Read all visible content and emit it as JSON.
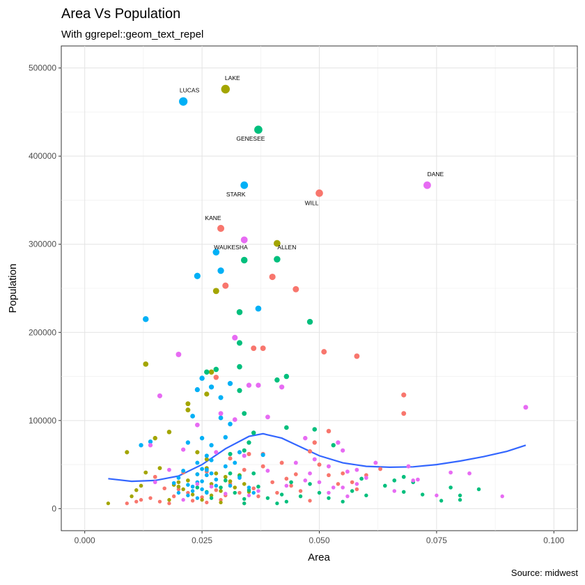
{
  "chart_data": {
    "type": "scatter",
    "title": "Area Vs Population",
    "subtitle": "With ggrepel::geom_text_repel",
    "caption": "Source: midwest",
    "xlabel": "Area",
    "ylabel": "Population",
    "xlim": [
      -0.005,
      0.105
    ],
    "ylim": [
      -25000,
      525000
    ],
    "x_ticks": [
      0,
      0.025,
      0.05,
      0.075,
      0.1
    ],
    "x_tick_labels": [
      "0.000",
      "0.025",
      "0.050",
      "0.075",
      "0.100"
    ],
    "y_ticks": [
      0,
      100000,
      200000,
      300000,
      400000,
      500000
    ],
    "y_tick_labels": [
      "0",
      "100000",
      "200000",
      "300000",
      "400000",
      "500000"
    ],
    "grid": true,
    "legend": "none",
    "colors": {
      "IL": "#F8766D",
      "IN": "#A3A500",
      "MI": "#00BF7D",
      "OH": "#00B0F6",
      "WI": "#E76BF3",
      "smooth": "#3366FF"
    },
    "series": [
      {
        "color_key": "IL",
        "points": [
          [
            0.029,
            318000
          ],
          [
            0.05,
            358000
          ],
          [
            0.03,
            253000
          ],
          [
            0.04,
            263000
          ],
          [
            0.045,
            249000
          ],
          [
            0.036,
            182000
          ],
          [
            0.038,
            182000
          ],
          [
            0.051,
            178000
          ],
          [
            0.058,
            173000
          ],
          [
            0.028,
            149000
          ],
          [
            0.068,
            129000
          ],
          [
            0.068,
            108000
          ],
          [
            0.049,
            75000
          ],
          [
            0.052,
            88000
          ],
          [
            0.048,
            65000
          ],
          [
            0.042,
            52000
          ],
          [
            0.05,
            50000
          ],
          [
            0.038,
            62000
          ],
          [
            0.031,
            57000
          ],
          [
            0.035,
            62000
          ],
          [
            0.009,
            6000
          ],
          [
            0.011,
            8000
          ],
          [
            0.012,
            10000
          ],
          [
            0.014,
            12000
          ],
          [
            0.016,
            8000
          ],
          [
            0.018,
            6000
          ],
          [
            0.019,
            14000
          ],
          [
            0.02,
            22000
          ],
          [
            0.022,
            18000
          ],
          [
            0.023,
            9000
          ],
          [
            0.025,
            13000
          ],
          [
            0.026,
            7000
          ],
          [
            0.028,
            21000
          ],
          [
            0.029,
            10000
          ],
          [
            0.03,
            15000
          ],
          [
            0.031,
            28000
          ],
          [
            0.033,
            18000
          ],
          [
            0.034,
            6000
          ],
          [
            0.036,
            23000
          ],
          [
            0.037,
            14000
          ],
          [
            0.04,
            30000
          ],
          [
            0.041,
            18000
          ],
          [
            0.043,
            34000
          ],
          [
            0.044,
            26000
          ],
          [
            0.046,
            20000
          ],
          [
            0.048,
            9000
          ],
          [
            0.052,
            38000
          ],
          [
            0.055,
            40000
          ],
          [
            0.057,
            30000
          ],
          [
            0.06,
            38000
          ],
          [
            0.063,
            45000
          ],
          [
            0.015,
            36000
          ],
          [
            0.017,
            23000
          ],
          [
            0.021,
            41000
          ],
          [
            0.026,
            42000
          ],
          [
            0.034,
            44000
          ],
          [
            0.038,
            48000
          ],
          [
            0.045,
            39000
          ],
          [
            0.054,
            28000
          ],
          [
            0.058,
            22000
          ]
        ]
      },
      {
        "color_key": "IN",
        "points": [
          [
            0.03,
            476000
          ],
          [
            0.041,
            301000
          ],
          [
            0.028,
            247000
          ],
          [
            0.013,
            164000
          ],
          [
            0.027,
            155000
          ],
          [
            0.026,
            130000
          ],
          [
            0.022,
            119000
          ],
          [
            0.022,
            112000
          ],
          [
            0.018,
            87000
          ],
          [
            0.015,
            80000
          ],
          [
            0.009,
            64000
          ],
          [
            0.016,
            46000
          ],
          [
            0.013,
            41000
          ],
          [
            0.012,
            26000
          ],
          [
            0.005,
            6000
          ],
          [
            0.01,
            14000
          ],
          [
            0.011,
            21000
          ],
          [
            0.019,
            27000
          ],
          [
            0.02,
            30000
          ],
          [
            0.021,
            22000
          ],
          [
            0.022,
            32000
          ],
          [
            0.023,
            16000
          ],
          [
            0.024,
            39000
          ],
          [
            0.025,
            10000
          ],
          [
            0.026,
            46000
          ],
          [
            0.027,
            28000
          ],
          [
            0.028,
            40000
          ],
          [
            0.029,
            20000
          ],
          [
            0.03,
            36000
          ],
          [
            0.031,
            31000
          ],
          [
            0.032,
            24000
          ],
          [
            0.033,
            38000
          ],
          [
            0.034,
            28000
          ],
          [
            0.035,
            19000
          ],
          [
            0.02,
            25000
          ],
          [
            0.018,
            10000
          ],
          [
            0.024,
            64000
          ],
          [
            0.026,
            56000
          ],
          [
            0.027,
            15000
          ],
          [
            0.029,
            7000
          ]
        ]
      },
      {
        "color_key": "MI",
        "points": [
          [
            0.037,
            430000
          ],
          [
            0.041,
            283000
          ],
          [
            0.034,
            282000
          ],
          [
            0.033,
            223000
          ],
          [
            0.048,
            212000
          ],
          [
            0.033,
            188000
          ],
          [
            0.033,
            161000
          ],
          [
            0.028,
            158000
          ],
          [
            0.026,
            155000
          ],
          [
            0.043,
            150000
          ],
          [
            0.033,
            134000
          ],
          [
            0.041,
            146000
          ],
          [
            0.034,
            108000
          ],
          [
            0.049,
            90000
          ],
          [
            0.043,
            92000
          ],
          [
            0.036,
            86000
          ],
          [
            0.035,
            75000
          ],
          [
            0.034,
            66000
          ],
          [
            0.031,
            62000
          ],
          [
            0.053,
            72000
          ],
          [
            0.059,
            34000
          ],
          [
            0.064,
            26000
          ],
          [
            0.068,
            19000
          ],
          [
            0.072,
            16000
          ],
          [
            0.076,
            9000
          ],
          [
            0.08,
            10000
          ],
          [
            0.048,
            28000
          ],
          [
            0.046,
            14000
          ],
          [
            0.044,
            30000
          ],
          [
            0.042,
            16000
          ],
          [
            0.041,
            6000
          ],
          [
            0.039,
            12000
          ],
          [
            0.037,
            25000
          ],
          [
            0.035,
            21000
          ],
          [
            0.034,
            11000
          ],
          [
            0.033,
            37000
          ],
          [
            0.036,
            40000
          ],
          [
            0.031,
            40000
          ],
          [
            0.03,
            32000
          ],
          [
            0.029,
            24000
          ],
          [
            0.032,
            18000
          ],
          [
            0.026,
            19000
          ],
          [
            0.024,
            24000
          ],
          [
            0.027,
            12000
          ],
          [
            0.05,
            18000
          ],
          [
            0.052,
            12000
          ],
          [
            0.055,
            8000
          ],
          [
            0.057,
            20000
          ],
          [
            0.06,
            15000
          ],
          [
            0.066,
            32000
          ],
          [
            0.068,
            36000
          ],
          [
            0.07,
            30000
          ],
          [
            0.078,
            24000
          ],
          [
            0.08,
            15000
          ],
          [
            0.084,
            22000
          ],
          [
            0.034,
            6000
          ],
          [
            0.043,
            8000
          ]
        ]
      },
      {
        "color_key": "OH",
        "points": [
          [
            0.021,
            462000
          ],
          [
            0.034,
            367000
          ],
          [
            0.028,
            291000
          ],
          [
            0.029,
            270000
          ],
          [
            0.024,
            264000
          ],
          [
            0.037,
            227000
          ],
          [
            0.013,
            215000
          ],
          [
            0.029,
            126000
          ],
          [
            0.027,
            138000
          ],
          [
            0.031,
            142000
          ],
          [
            0.025,
            148000
          ],
          [
            0.024,
            135000
          ],
          [
            0.023,
            105000
          ],
          [
            0.029,
            103000
          ],
          [
            0.031,
            96000
          ],
          [
            0.014,
            76000
          ],
          [
            0.012,
            72000
          ],
          [
            0.025,
            80000
          ],
          [
            0.022,
            75000
          ],
          [
            0.027,
            72000
          ],
          [
            0.03,
            81000
          ],
          [
            0.033,
            64000
          ],
          [
            0.024,
            52000
          ],
          [
            0.025,
            45000
          ],
          [
            0.026,
            38000
          ],
          [
            0.027,
            40000
          ],
          [
            0.028,
            33000
          ],
          [
            0.024,
            30000
          ],
          [
            0.023,
            25000
          ],
          [
            0.025,
            22000
          ],
          [
            0.026,
            18000
          ],
          [
            0.02,
            35000
          ],
          [
            0.019,
            29000
          ],
          [
            0.021,
            43000
          ],
          [
            0.022,
            15000
          ],
          [
            0.023,
            20000
          ],
          [
            0.03,
            48000
          ],
          [
            0.031,
            26000
          ],
          [
            0.032,
            52000
          ],
          [
            0.027,
            55000
          ],
          [
            0.026,
            60000
          ],
          [
            0.02,
            18000
          ],
          [
            0.024,
            12000
          ],
          [
            0.028,
            26000
          ],
          [
            0.038,
            61000
          ],
          [
            0.033,
            35000
          ],
          [
            0.035,
            24000
          ],
          [
            0.036,
            18000
          ],
          [
            0.022,
            27000
          ],
          [
            0.025,
            31000
          ],
          [
            0.026,
            44000
          ],
          [
            0.024,
            39000
          ]
        ]
      },
      {
        "color_key": "WI",
        "points": [
          [
            0.073,
            367000
          ],
          [
            0.034,
            305000
          ],
          [
            0.032,
            194000
          ],
          [
            0.02,
            175000
          ],
          [
            0.035,
            140000
          ],
          [
            0.037,
            140000
          ],
          [
            0.042,
            138000
          ],
          [
            0.016,
            128000
          ],
          [
            0.094,
            115000
          ],
          [
            0.039,
            104000
          ],
          [
            0.032,
            101000
          ],
          [
            0.029,
            108000
          ],
          [
            0.024,
            95000
          ],
          [
            0.014,
            72000
          ],
          [
            0.021,
            67000
          ],
          [
            0.028,
            64000
          ],
          [
            0.034,
            60000
          ],
          [
            0.047,
            80000
          ],
          [
            0.054,
            75000
          ],
          [
            0.055,
            66000
          ],
          [
            0.062,
            52000
          ],
          [
            0.069,
            48000
          ],
          [
            0.078,
            41000
          ],
          [
            0.082,
            40000
          ],
          [
            0.07,
            32000
          ],
          [
            0.071,
            33000
          ],
          [
            0.075,
            15000
          ],
          [
            0.089,
            14000
          ],
          [
            0.066,
            20000
          ],
          [
            0.06,
            35000
          ],
          [
            0.056,
            42000
          ],
          [
            0.052,
            48000
          ],
          [
            0.049,
            56000
          ],
          [
            0.045,
            52000
          ],
          [
            0.048,
            40000
          ],
          [
            0.05,
            30000
          ],
          [
            0.053,
            24000
          ],
          [
            0.056,
            14000
          ],
          [
            0.058,
            28000
          ],
          [
            0.043,
            26000
          ],
          [
            0.039,
            43000
          ],
          [
            0.037,
            20000
          ],
          [
            0.035,
            15000
          ],
          [
            0.03,
            17000
          ],
          [
            0.027,
            25000
          ],
          [
            0.024,
            28000
          ],
          [
            0.021,
            10000
          ],
          [
            0.018,
            44000
          ],
          [
            0.015,
            30000
          ],
          [
            0.052,
            18000
          ],
          [
            0.047,
            32000
          ],
          [
            0.058,
            44000
          ],
          [
            0.055,
            24000
          ]
        ]
      }
    ],
    "labeled_points": [
      {
        "text": "LAKE",
        "x": 0.03,
        "y": 476000
      },
      {
        "text": "LUCAS",
        "x": 0.021,
        "y": 462000
      },
      {
        "text": "GENESEE",
        "x": 0.037,
        "y": 430000
      },
      {
        "text": "DANE",
        "x": 0.073,
        "y": 367000
      },
      {
        "text": "STARK",
        "x": 0.034,
        "y": 367000
      },
      {
        "text": "WILL",
        "x": 0.05,
        "y": 358000
      },
      {
        "text": "KANE",
        "x": 0.029,
        "y": 318000
      },
      {
        "text": "WAUKESHA",
        "x": 0.028,
        "y": 291000
      },
      {
        "text": "ALLEN",
        "x": 0.041,
        "y": 283000
      }
    ],
    "smooth": {
      "x": [
        0.005,
        0.01,
        0.015,
        0.02,
        0.025,
        0.03,
        0.035,
        0.038,
        0.042,
        0.046,
        0.05,
        0.055,
        0.06,
        0.065,
        0.07,
        0.075,
        0.08,
        0.085,
        0.09,
        0.094
      ],
      "y": [
        34000,
        31000,
        32000,
        37000,
        50000,
        68000,
        82000,
        85000,
        80000,
        70000,
        60000,
        52000,
        48000,
        47000,
        47500,
        50000,
        54000,
        59000,
        65000,
        72000
      ]
    }
  }
}
